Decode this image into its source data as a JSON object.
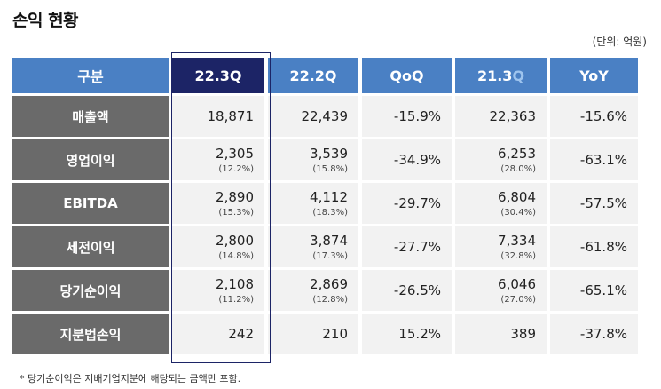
{
  "title": "손익 현황",
  "unit": "(단위: 억원)",
  "table": {
    "headers": [
      "구분",
      "22.3Q",
      "22.2Q",
      "QoQ",
      "21.3",
      "Q",
      "YoY"
    ],
    "rows": [
      {
        "label": "매출액",
        "c1": "18,871",
        "c1s": "",
        "c2": "22,439",
        "c2s": "",
        "c3": "-15.9%",
        "c4": "22,363",
        "c4s": "",
        "c5": "-15.6%"
      },
      {
        "label": "영업이익",
        "c1": "2,305",
        "c1s": "(12.2%)",
        "c2": "3,539",
        "c2s": "(15.8%)",
        "c3": "-34.9%",
        "c4": "6,253",
        "c4s": "(28.0%)",
        "c5": "-63.1%"
      },
      {
        "label": "EBITDA",
        "c1": "2,890",
        "c1s": "(15.3%)",
        "c2": "4,112",
        "c2s": "(18.3%)",
        "c3": "-29.7%",
        "c4": "6,804",
        "c4s": "(30.4%)",
        "c5": "-57.5%"
      },
      {
        "label": "세전이익",
        "c1": "2,800",
        "c1s": "(14.8%)",
        "c2": "3,874",
        "c2s": "(17.3%)",
        "c3": "-27.7%",
        "c4": "7,334",
        "c4s": "(32.8%)",
        "c5": "-61.8%"
      },
      {
        "label": "당기순이익",
        "c1": "2,108",
        "c1s": "(11.2%)",
        "c2": "2,869",
        "c2s": "(12.8%)",
        "c3": "-26.5%",
        "c4": "6,046",
        "c4s": "(27.0%)",
        "c5": "-65.1%"
      },
      {
        "label": "지분법손익",
        "c1": "242",
        "c1s": "",
        "c2": "210",
        "c2s": "",
        "c3": "15.2%",
        "c4": "389",
        "c4s": "",
        "c5": "-37.8%"
      }
    ]
  },
  "note": "* 당기순이익은 지배기업지분에 해당되는 금액만 포함.",
  "colors": {
    "header_blue": "#4a80c4",
    "header_highlight": "#1c2466",
    "label_gray": "#6a6a6a",
    "cell_bg": "#f2f2f2"
  }
}
